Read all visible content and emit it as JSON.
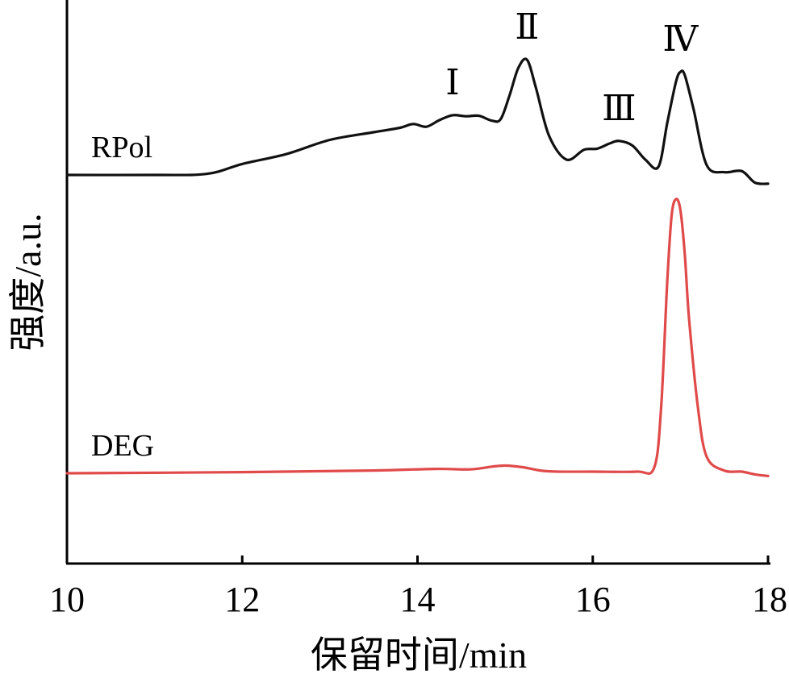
{
  "chart_data": {
    "type": "line",
    "title": "",
    "xlabel": "保留时间/min",
    "ylabel": "强度/a.u.",
    "xlim": [
      10,
      18
    ],
    "x_ticks": [
      "10",
      "12",
      "14",
      "16",
      "18"
    ],
    "y_ticks_shown": false,
    "grid": false,
    "series": [
      {
        "name": "RPol",
        "color": "#111111",
        "x": [
          10.0,
          11.0,
          11.6,
          12.0,
          12.5,
          13.0,
          13.5,
          13.8,
          13.95,
          14.1,
          14.25,
          14.4,
          14.55,
          14.7,
          14.85,
          14.95,
          15.05,
          15.15,
          15.25,
          15.35,
          15.5,
          15.7,
          15.9,
          16.05,
          16.2,
          16.3,
          16.45,
          16.6,
          16.75,
          16.85,
          16.95,
          17.0,
          17.05,
          17.15,
          17.3,
          17.5,
          17.7,
          17.85,
          18.0
        ],
        "y": [
          0.0,
          0.0,
          0.02,
          0.2,
          0.38,
          0.64,
          0.78,
          0.86,
          0.93,
          0.88,
          1.0,
          1.09,
          1.07,
          1.08,
          0.99,
          1.02,
          1.45,
          1.95,
          2.1,
          1.6,
          0.72,
          0.28,
          0.46,
          0.48,
          0.58,
          0.62,
          0.54,
          0.28,
          0.15,
          0.95,
          1.7,
          1.88,
          1.82,
          1.2,
          0.18,
          0.05,
          0.07,
          -0.14,
          -0.16
        ],
        "peaks": [
          {
            "label": "Ⅰ",
            "x": 14.4
          },
          {
            "label": "Ⅱ",
            "x": 15.25
          },
          {
            "label": "Ⅲ",
            "x": 16.3
          },
          {
            "label": "Ⅳ",
            "x": 17.0
          }
        ]
      },
      {
        "name": "DEG",
        "color": "#e04a4a",
        "x": [
          10.0,
          12.0,
          13.5,
          14.2,
          14.6,
          14.85,
          15.0,
          15.2,
          15.4,
          15.6,
          16.0,
          16.5,
          16.7,
          16.78,
          16.85,
          16.9,
          16.95,
          17.0,
          17.05,
          17.1,
          17.2,
          17.3,
          17.5,
          17.7,
          17.85,
          18.0
        ],
        "y": [
          0.0,
          0.02,
          0.05,
          0.08,
          0.07,
          0.12,
          0.14,
          0.11,
          0.05,
          0.03,
          0.03,
          0.03,
          0.1,
          1.2,
          3.5,
          4.7,
          5.0,
          4.8,
          4.0,
          2.8,
          1.2,
          0.3,
          0.05,
          0.03,
          -0.02,
          -0.05
        ]
      }
    ]
  }
}
